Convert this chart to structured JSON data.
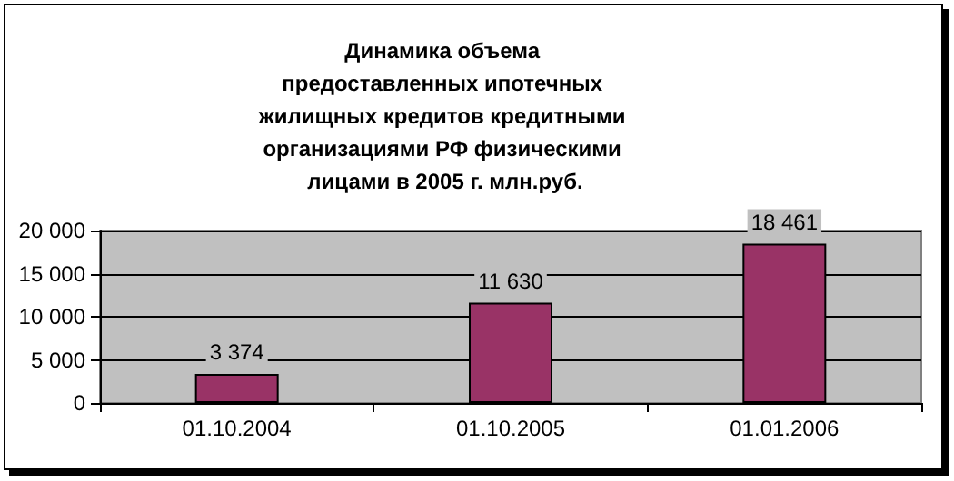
{
  "chart_data": {
    "type": "bar",
    "title": "Динамика объема предоставленных ипотечных жилищных кредитов кредитными организациями РФ физическими лицами в 2005 г. млн.руб.",
    "categories": [
      "01.10.2004",
      "01.10.2005",
      "01.01.2006"
    ],
    "values": [
      3374,
      11630,
      18461
    ],
    "color": "#993366",
    "value_labels": [
      "3 374",
      "11 630",
      "18 461"
    ],
    "ylim": [
      0,
      20000
    ],
    "yticks": [
      {
        "value": 0,
        "label": "0"
      },
      {
        "value": 5000,
        "label": "5 000"
      },
      {
        "value": 10000,
        "label": "10 000"
      },
      {
        "value": 15000,
        "label": "15 000"
      },
      {
        "value": 20000,
        "label": "20 000"
      }
    ],
    "grid": "y"
  }
}
